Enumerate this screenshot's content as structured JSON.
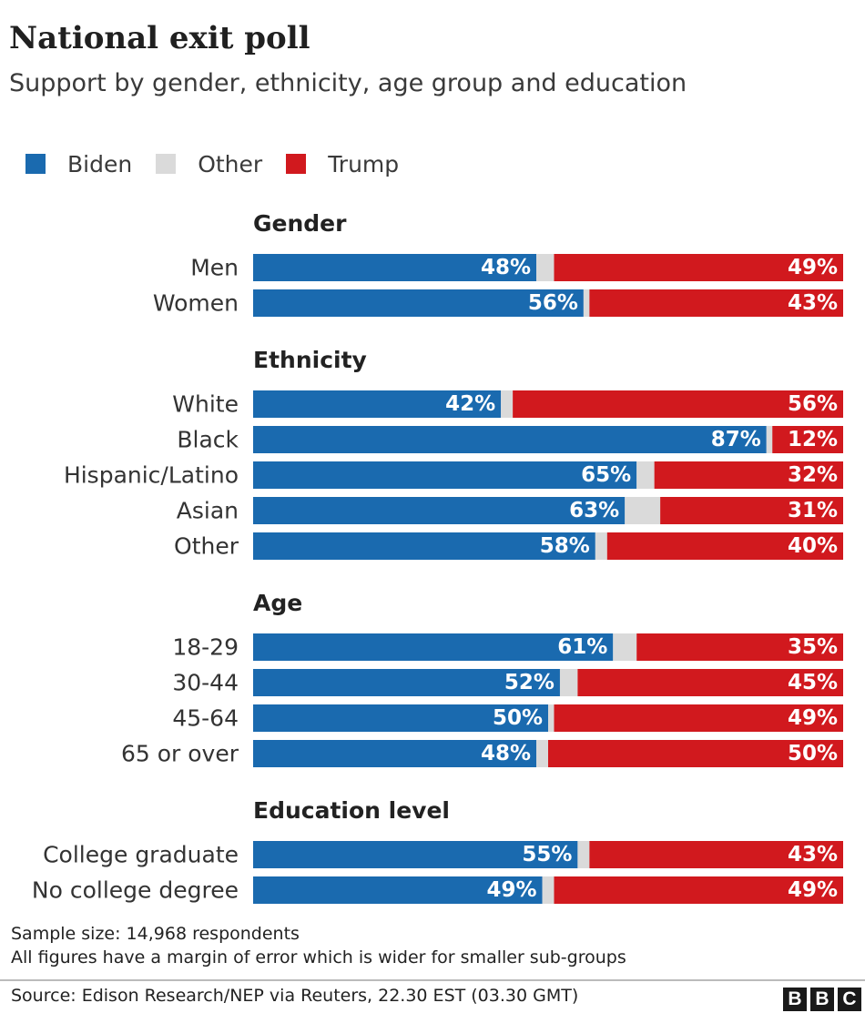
{
  "title": "National exit poll",
  "subtitle": "Support by gender, ethnicity, age group and education",
  "legend": [
    {
      "label": "Biden",
      "color": "#1a6aaf"
    },
    {
      "label": "Other",
      "color": "#dadada"
    },
    {
      "label": "Trump",
      "color": "#d1191e"
    }
  ],
  "chart_data": {
    "type": "bar",
    "orientation": "horizontal",
    "stacked": true,
    "xlim": [
      0,
      100
    ],
    "series_names": [
      "Biden",
      "Other",
      "Trump"
    ],
    "groups": [
      {
        "name": "Gender",
        "rows": [
          {
            "label": "Men",
            "biden": 48,
            "trump": 49
          },
          {
            "label": "Women",
            "biden": 56,
            "trump": 43
          }
        ]
      },
      {
        "name": "Ethnicity",
        "rows": [
          {
            "label": "White",
            "biden": 42,
            "trump": 56
          },
          {
            "label": "Black",
            "biden": 87,
            "trump": 12
          },
          {
            "label": "Hispanic/Latino",
            "biden": 65,
            "trump": 32
          },
          {
            "label": "Asian",
            "biden": 63,
            "trump": 31
          },
          {
            "label": "Other",
            "biden": 58,
            "trump": 40
          }
        ]
      },
      {
        "name": "Age",
        "rows": [
          {
            "label": "18-29",
            "biden": 61,
            "trump": 35
          },
          {
            "label": "30-44",
            "biden": 52,
            "trump": 45
          },
          {
            "label": "45-64",
            "biden": 50,
            "trump": 49
          },
          {
            "label": "65 or over",
            "biden": 48,
            "trump": 50
          }
        ]
      },
      {
        "name": "Education level",
        "rows": [
          {
            "label": "College graduate",
            "biden": 55,
            "trump": 43
          },
          {
            "label": "No college degree",
            "biden": 49,
            "trump": 49
          }
        ]
      }
    ]
  },
  "notes": {
    "sample": "Sample size: 14,968 respondents",
    "margin": "All figures have a margin of error which is wider for smaller sub-groups"
  },
  "source": "Source: Edison Research/NEP via Reuters, 22.30 EST (03.30 GMT)",
  "logo": [
    "B",
    "B",
    "C"
  ]
}
